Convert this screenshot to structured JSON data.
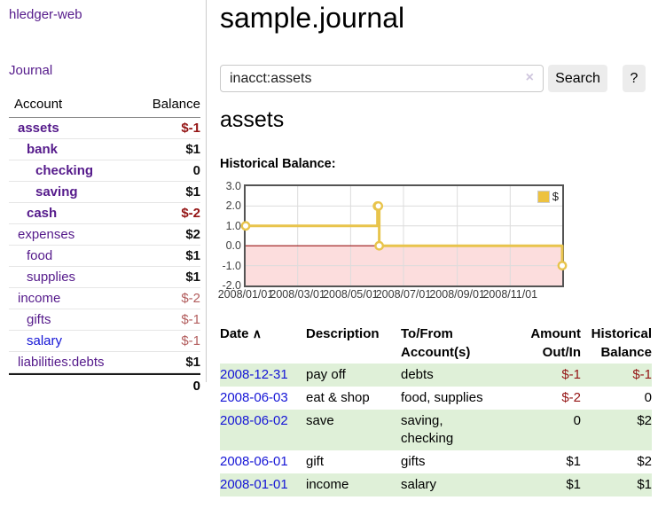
{
  "sidebar": {
    "brand": "hledger-web",
    "nav": {
      "journal": "Journal"
    },
    "accounts_table": {
      "header": {
        "account": "Account",
        "balance": "Balance"
      },
      "rows": [
        {
          "name": "assets",
          "balance": "$-1",
          "depth": 0,
          "emphasis": true,
          "negative": "strong",
          "unvisited": false
        },
        {
          "name": "bank",
          "balance": "$1",
          "depth": 1,
          "emphasis": true,
          "negative": null,
          "unvisited": false
        },
        {
          "name": "checking",
          "balance": "0",
          "depth": 2,
          "emphasis": true,
          "negative": null,
          "unvisited": false
        },
        {
          "name": "saving",
          "balance": "$1",
          "depth": 2,
          "emphasis": true,
          "negative": null,
          "unvisited": false
        },
        {
          "name": "cash",
          "balance": "$-2",
          "depth": 1,
          "emphasis": true,
          "negative": "strong",
          "unvisited": false
        },
        {
          "name": "expenses",
          "balance": "$2",
          "depth": 0,
          "emphasis": false,
          "negative": null,
          "unvisited": false
        },
        {
          "name": "food",
          "balance": "$1",
          "depth": 1,
          "emphasis": false,
          "negative": null,
          "unvisited": false
        },
        {
          "name": "supplies",
          "balance": "$1",
          "depth": 1,
          "emphasis": false,
          "negative": null,
          "unvisited": false
        },
        {
          "name": "income",
          "balance": "$-2",
          "depth": 0,
          "emphasis": false,
          "negative": "soft",
          "unvisited": false
        },
        {
          "name": "gifts",
          "balance": "$-1",
          "depth": 1,
          "emphasis": false,
          "negative": "soft",
          "unvisited": false
        },
        {
          "name": "salary",
          "balance": "$-1",
          "depth": 1,
          "emphasis": false,
          "negative": "soft",
          "unvisited": true
        },
        {
          "name": "liabilities:debts",
          "balance": "$1",
          "depth": 0,
          "emphasis": false,
          "negative": null,
          "unvisited": false
        }
      ],
      "total": "0"
    }
  },
  "main": {
    "title": "sample.journal",
    "search": {
      "value": "inacct:assets",
      "clear_icon": "×",
      "search_button": "Search",
      "help_button": "?"
    },
    "account_heading": "assets",
    "chart_title": "Historical Balance:"
  },
  "chart_data": {
    "type": "line",
    "style": "step",
    "title": "Historical Balance",
    "x_range": [
      "2008-01-01",
      "2008-12-31"
    ],
    "ylim": [
      -2,
      3
    ],
    "yticks": [
      "3.0",
      "2.0",
      "1.0",
      "0.0",
      "-1.0",
      "-2.0"
    ],
    "xticks": [
      "2008/01/01",
      "2008/03/01",
      "2008/05/01",
      "2008/07/01",
      "2008/09/01",
      "2008/11/01"
    ],
    "series": [
      {
        "name": "$",
        "color": "#e8c44c",
        "marker_fill": "#ffffff",
        "points": [
          [
            "2008-01-01",
            1
          ],
          [
            "2008-06-01",
            2
          ],
          [
            "2008-06-02",
            2
          ],
          [
            "2008-06-03",
            0
          ],
          [
            "2008-12-31",
            -1
          ]
        ]
      }
    ],
    "legend": {
      "label": "$",
      "position": "top-right",
      "swatch_color": "#edc240"
    },
    "grid": true,
    "gridline_color": "#dcdcdc",
    "negative_region_color": "#fcdddd",
    "zero_line_color": "#991414"
  },
  "register": {
    "columns": {
      "date": "Date",
      "sort_icon": "∧",
      "description": "Description",
      "accounts_line1": "To/From",
      "accounts_line2": "Account(s)",
      "amount_line1": "Amount",
      "amount_line2": "Out/In",
      "balance_line1": "Historical",
      "balance_line2": "Balance"
    },
    "rows": [
      {
        "date": "2008-12-31",
        "description": "pay off",
        "accounts": [
          "debts"
        ],
        "amount": "$-1",
        "balance": "$-1"
      },
      {
        "date": "2008-06-03",
        "description": "eat & shop",
        "accounts": [
          "food, supplies"
        ],
        "amount": "$-2",
        "balance": "0"
      },
      {
        "date": "2008-06-02",
        "description": "save",
        "accounts": [
          "saving,",
          "checking"
        ],
        "amount": "0",
        "balance": "$2"
      },
      {
        "date": "2008-06-01",
        "description": "gift",
        "accounts": [
          "gifts"
        ],
        "amount": "$1",
        "balance": "$2"
      },
      {
        "date": "2008-01-01",
        "description": "income",
        "accounts": [
          "salary"
        ],
        "amount": "$1",
        "balance": "$1"
      }
    ]
  }
}
